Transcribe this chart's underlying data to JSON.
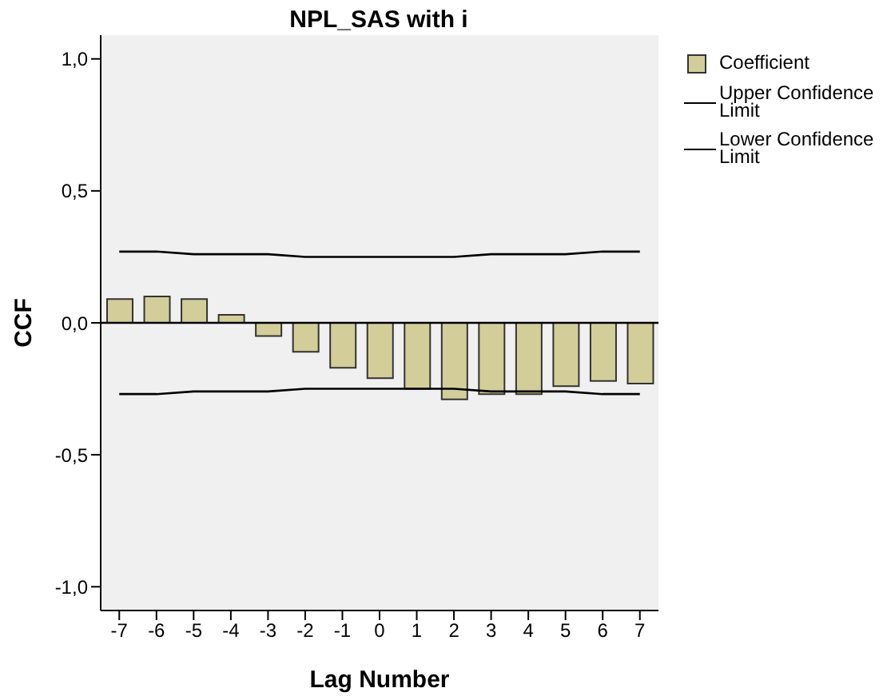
{
  "chart_data": {
    "type": "bar",
    "title": "NPL_SAS with i",
    "xlabel": "Lag Number",
    "ylabel": "CCF",
    "categories": [
      "-7",
      "-6",
      "-5",
      "-4",
      "-3",
      "-2",
      "-1",
      "0",
      "1",
      "2",
      "3",
      "4",
      "5",
      "6",
      "7"
    ],
    "series": [
      {
        "name": "Coefficient",
        "color": "#d3ce99",
        "values": [
          0.09,
          0.1,
          0.09,
          0.03,
          -0.05,
          -0.11,
          -0.17,
          -0.21,
          -0.25,
          -0.29,
          -0.27,
          -0.27,
          -0.24,
          -0.22,
          -0.23
        ]
      },
      {
        "name": "Upper Confidence Limit",
        "type": "line",
        "color": "#000000",
        "values": [
          0.27,
          0.27,
          0.26,
          0.26,
          0.26,
          0.25,
          0.25,
          0.25,
          0.25,
          0.25,
          0.26,
          0.26,
          0.26,
          0.27,
          0.27
        ]
      },
      {
        "name": "Lower Confidence Limit",
        "type": "line",
        "color": "#000000",
        "values": [
          -0.27,
          -0.27,
          -0.26,
          -0.26,
          -0.26,
          -0.25,
          -0.25,
          -0.25,
          -0.25,
          -0.25,
          -0.26,
          -0.26,
          -0.26,
          -0.27,
          -0.27
        ]
      }
    ],
    "ylim": [
      -1.09,
      1.09
    ],
    "yticks": [
      {
        "value": -1,
        "label": "-1,0"
      },
      {
        "value": -0.5,
        "label": "-0,5"
      },
      {
        "value": 0,
        "label": "0,0"
      },
      {
        "value": 0.5,
        "label": "0,5"
      },
      {
        "value": 1,
        "label": "1,0"
      }
    ],
    "ref_lines": [
      {
        "axis": "y",
        "value": 0,
        "label": null,
        "color": "#000000"
      }
    ],
    "legend": "top right",
    "marker": "none",
    "line_style": "solid",
    "grid": false
  }
}
